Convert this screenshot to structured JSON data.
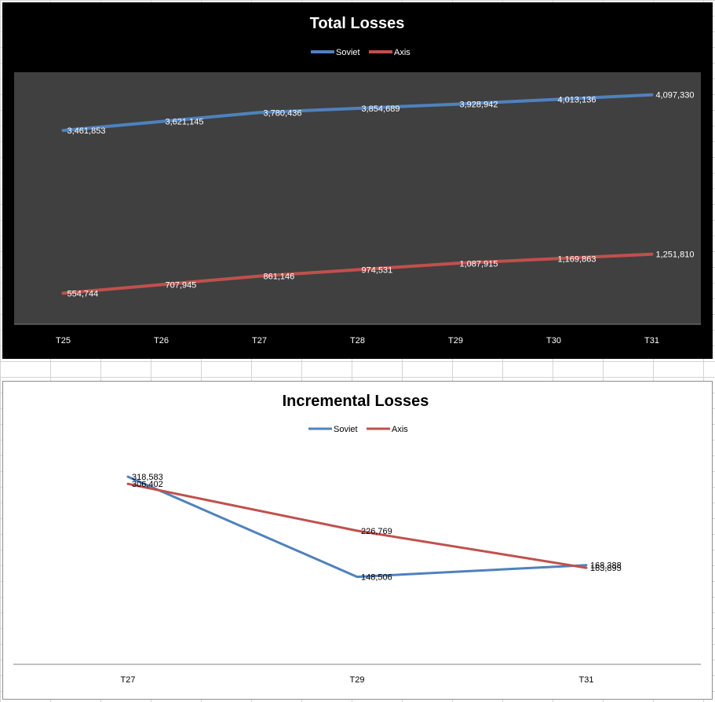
{
  "chart_data": [
    {
      "type": "line",
      "title": "Total Losses",
      "categories": [
        "T25",
        "T26",
        "T27",
        "T28",
        "T29",
        "T30",
        "T31"
      ],
      "series": [
        {
          "name": "Soviet",
          "color": "#4f81bd",
          "values": [
            3461853,
            3621145,
            3780436,
            3854689,
            3928942,
            4013136,
            4097330
          ],
          "labels": [
            "3,461,853",
            "3,621,145",
            "3,780,436",
            "3,854,689",
            "3,928,942",
            "4,013,136",
            "4,097,330"
          ]
        },
        {
          "name": "Axis",
          "color": "#c0504d",
          "values": [
            554744,
            707945,
            861146,
            974531,
            1087915,
            1169863,
            1251810
          ],
          "labels": [
            "554,744",
            "707,945",
            "861,146",
            "974,531",
            "1,087,915",
            "1,169,863",
            "1,251,810"
          ]
        }
      ],
      "ylim": [
        0,
        4500000
      ],
      "legend": "top",
      "grid": false,
      "background": "#000000",
      "plot_background": "#404040",
      "text_color": "#ffffff"
    },
    {
      "type": "line",
      "title": "Incremental Losses",
      "categories": [
        "T27",
        "T29",
        "T31"
      ],
      "series": [
        {
          "name": "Soviet",
          "color": "#4f81bd",
          "values": [
            318583,
            148506,
            168388
          ],
          "labels": [
            "318,583",
            "148,506",
            "168,388"
          ]
        },
        {
          "name": "Axis",
          "color": "#c0504d",
          "values": [
            306402,
            226769,
            163895
          ],
          "labels": [
            "306,402",
            "226,769",
            "163,895"
          ]
        }
      ],
      "ylim": [
        0,
        400000
      ],
      "legend": "top",
      "grid": false,
      "background": "#ffffff",
      "text_color": "#000000"
    }
  ]
}
